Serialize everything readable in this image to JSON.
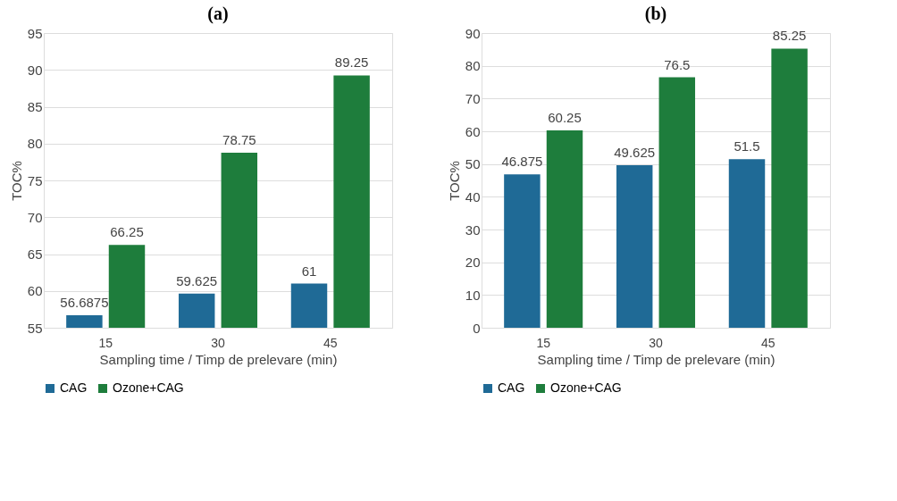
{
  "chart_data": [
    {
      "type": "bar",
      "title": "(a)",
      "xlabel": "Sampling time / Timp de prelevare  (min)",
      "ylabel": "TOC%",
      "categories": [
        "15",
        "30",
        "45"
      ],
      "series": [
        {
          "name": "CAG",
          "color": "#1f6a96",
          "values": [
            56.6875,
            59.625,
            61
          ]
        },
        {
          "name": "Ozone+CAG",
          "color": "#1e7d3c",
          "values": [
            66.25,
            78.75,
            89.25
          ]
        }
      ],
      "ylim": [
        55,
        95
      ],
      "yticks": [
        55,
        60,
        65,
        70,
        75,
        80,
        85,
        90,
        95
      ],
      "grid": "y",
      "legend": "bottom",
      "data_labels": true
    },
    {
      "type": "bar",
      "title": "(b)",
      "xlabel": "Sampling time / Timp de prelevare  (min)",
      "ylabel": "TOC%",
      "categories": [
        "15",
        "30",
        "45"
      ],
      "series": [
        {
          "name": "CAG",
          "color": "#1f6a96",
          "values": [
            46.875,
            49.625,
            51.5
          ]
        },
        {
          "name": "Ozone+CAG",
          "color": "#1e7d3c",
          "values": [
            60.25,
            76.5,
            85.25
          ]
        }
      ],
      "ylim": [
        0,
        90
      ],
      "yticks": [
        0,
        10,
        20,
        30,
        40,
        50,
        60,
        70,
        80,
        90
      ],
      "grid": "y",
      "legend": "bottom",
      "data_labels": true
    }
  ]
}
